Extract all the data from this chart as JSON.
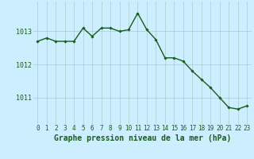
{
  "x": [
    0,
    1,
    2,
    3,
    4,
    5,
    6,
    7,
    8,
    9,
    10,
    11,
    12,
    13,
    14,
    15,
    16,
    17,
    18,
    19,
    20,
    21,
    22,
    23
  ],
  "y": [
    1012.7,
    1012.8,
    1012.7,
    1012.7,
    1012.7,
    1013.1,
    1012.85,
    1013.1,
    1013.1,
    1013.0,
    1013.05,
    1013.55,
    1013.05,
    1012.75,
    1012.2,
    1012.2,
    1012.1,
    1011.8,
    1011.55,
    1011.3,
    1011.0,
    1010.7,
    1010.65,
    1010.75
  ],
  "line_color": "#1a5c1a",
  "marker": "D",
  "marker_size": 1.8,
  "line_width": 1.0,
  "bg_color": "#cceeff",
  "grid_color": "#aacccc",
  "xlabel": "Graphe pression niveau de la mer (hPa)",
  "xlabel_fontsize": 7,
  "xlabel_color": "#1a5c1a",
  "yticks": [
    1011,
    1012,
    1013
  ],
  "ylim": [
    1010.2,
    1013.9
  ],
  "xlim": [
    -0.5,
    23.5
  ],
  "xtick_labels": [
    "0",
    "1",
    "2",
    "3",
    "4",
    "5",
    "6",
    "7",
    "8",
    "9",
    "10",
    "11",
    "12",
    "13",
    "14",
    "15",
    "16",
    "17",
    "18",
    "19",
    "20",
    "21",
    "22",
    "23"
  ],
  "tick_fontsize": 5.5,
  "ytick_fontsize": 6
}
